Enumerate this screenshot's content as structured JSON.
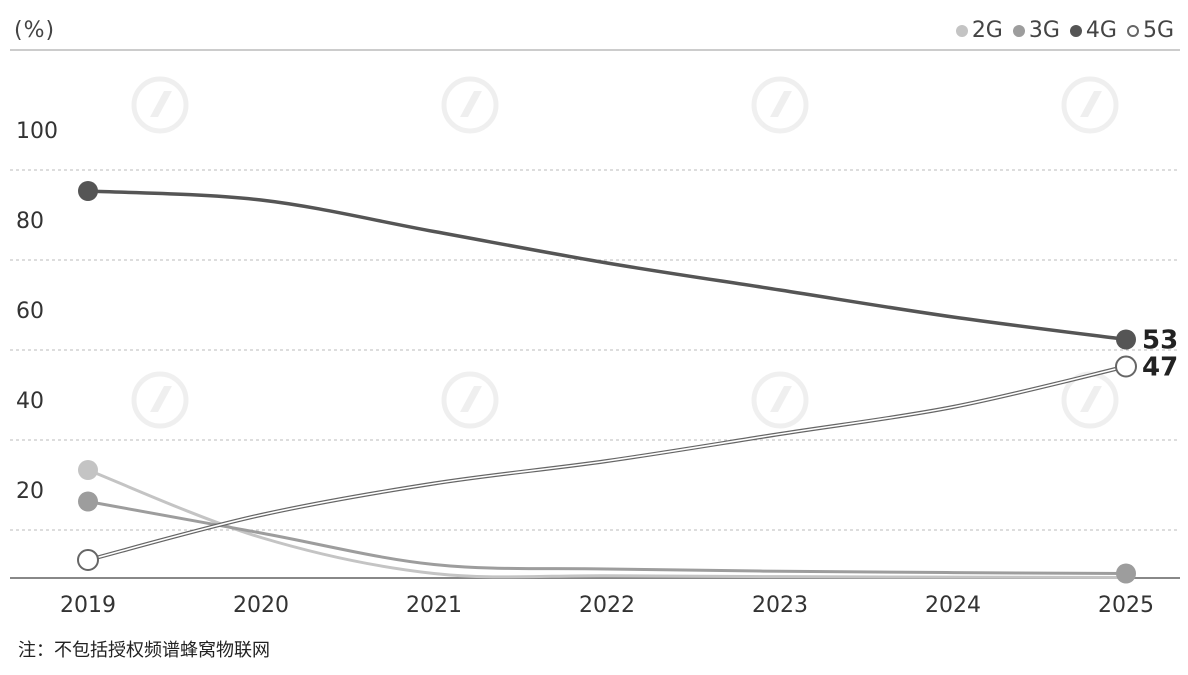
{
  "chart_data": {
    "type": "line",
    "unit_label": "(%)",
    "categories": [
      "2019",
      "2020",
      "2021",
      "2022",
      "2023",
      "2024",
      "2025"
    ],
    "ylim": [
      0,
      100
    ],
    "yticks": [
      20,
      40,
      60,
      80,
      100
    ],
    "grid": true,
    "legend_position": "top-right",
    "series": [
      {
        "name": "2G",
        "color": "#c4c4c4",
        "values": [
          24,
          9,
          1,
          0.5,
          0.3,
          0.2,
          0.1
        ]
      },
      {
        "name": "3G",
        "color": "#9d9d9d",
        "values": [
          17,
          10,
          3,
          2,
          1.5,
          1.2,
          1
        ]
      },
      {
        "name": "4G",
        "color": "#555555",
        "values": [
          86,
          84,
          77,
          70,
          64,
          58,
          53
        ]
      },
      {
        "name": "5G",
        "color": "#ffffff",
        "outline": "#666666",
        "values": [
          4,
          14,
          21,
          26,
          32,
          38,
          47
        ]
      }
    ],
    "end_labels": [
      {
        "series": "4G",
        "text": "53"
      },
      {
        "series": "5G",
        "text": "47"
      }
    ],
    "note": "注：不包括授权频谱蜂窝物联网"
  }
}
